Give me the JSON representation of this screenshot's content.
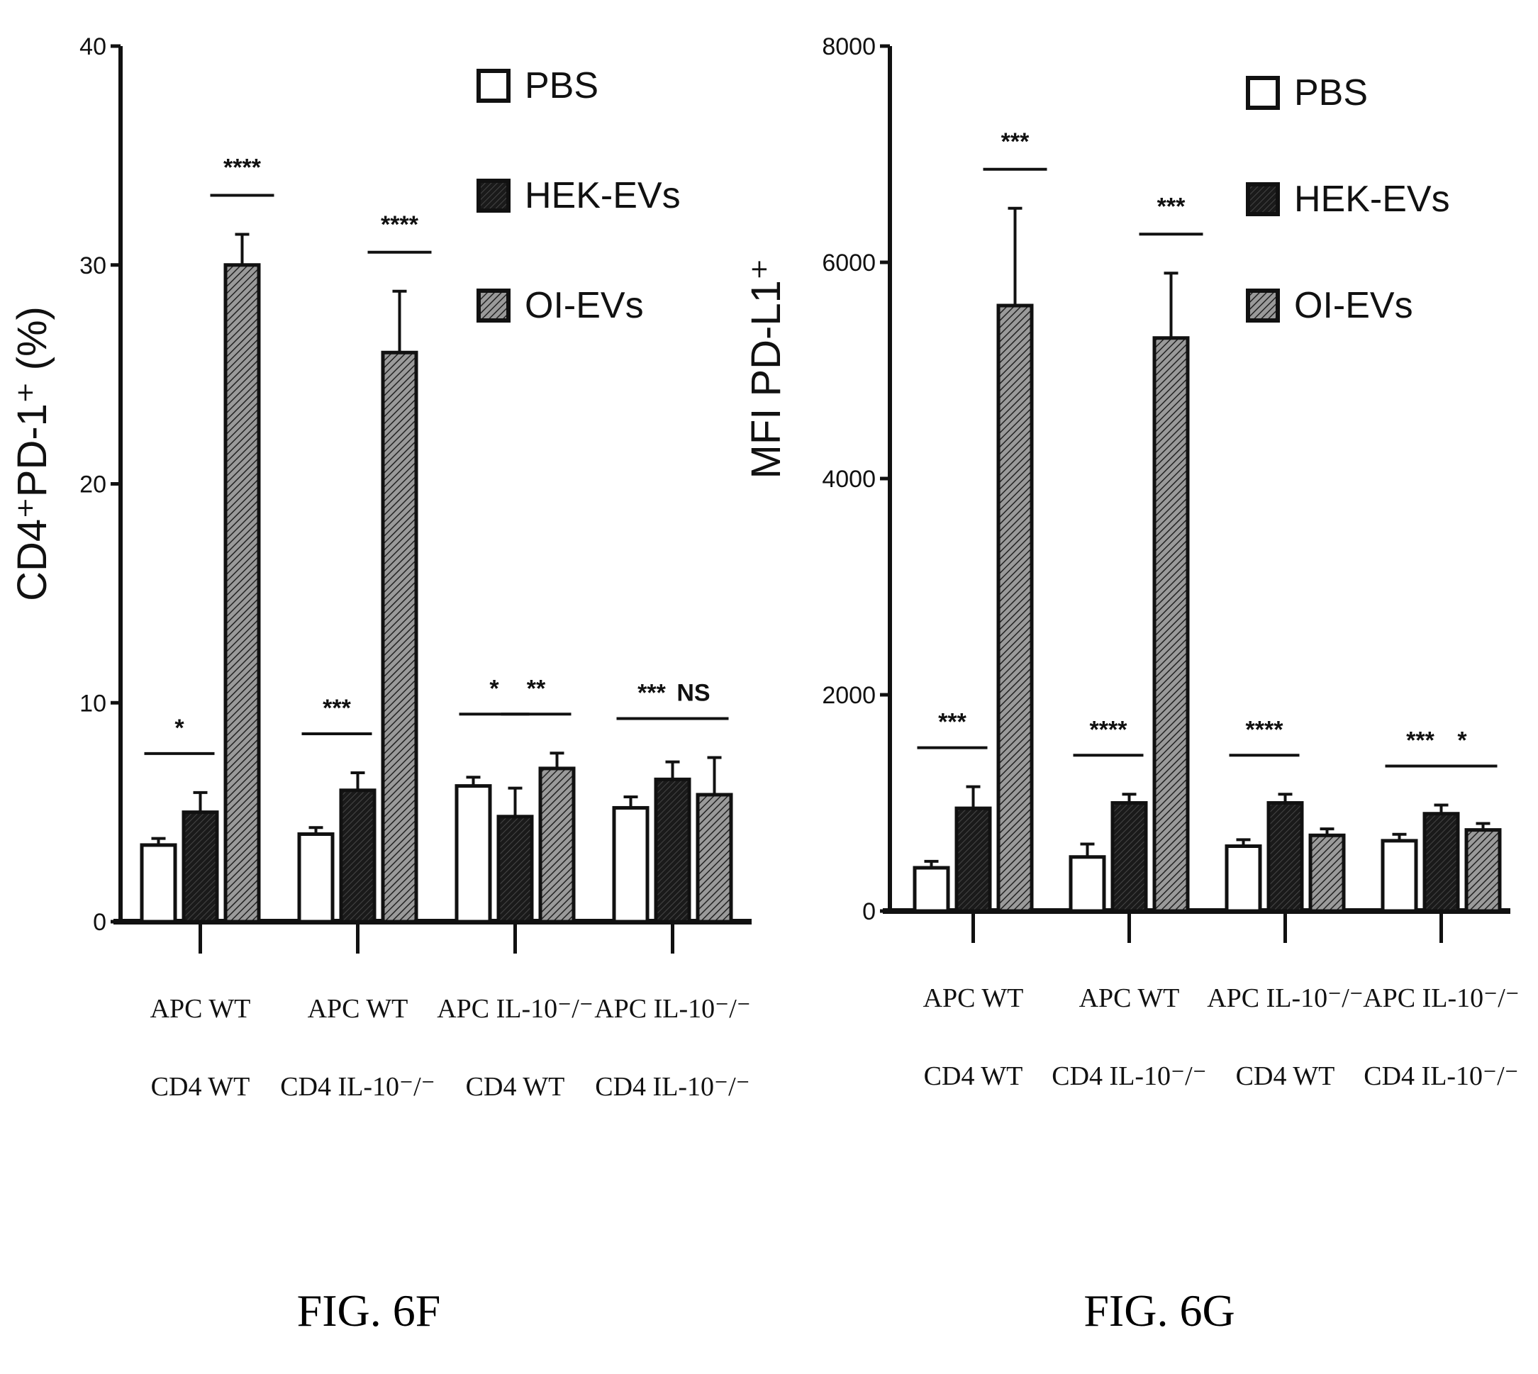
{
  "colors": {
    "PBS": "#ffffff",
    "HEK-EVs": "#111111",
    "OI-EVs": "#555555",
    "axis": "#111111"
  },
  "chart_data": [
    {
      "type": "bar",
      "caption": "FIG. 6F",
      "ylabel": "CD4⁺PD-1⁺ (%)",
      "ylim": [
        0,
        40
      ],
      "yticks": [
        0,
        10,
        20,
        30,
        40
      ],
      "legend_position": "top-right",
      "categories": [
        [
          "APC WT",
          "CD4 WT"
        ],
        [
          "APC WT",
          "CD4 IL-10⁻/⁻"
        ],
        [
          "APC IL-10⁻/⁻",
          "CD4 WT"
        ],
        [
          "APC IL-10⁻/⁻",
          "CD4 IL-10⁻/⁻"
        ]
      ],
      "series": [
        {
          "name": "PBS",
          "values": [
            3.5,
            4.0,
            6.2,
            5.2
          ],
          "errors": [
            0.3,
            0.3,
            0.4,
            0.5
          ]
        },
        {
          "name": "HEK-EVs",
          "values": [
            5.0,
            6.0,
            4.8,
            6.5
          ],
          "errors": [
            0.9,
            0.8,
            1.3,
            0.8
          ]
        },
        {
          "name": "OI-EVs",
          "values": [
            30.0,
            26.0,
            7.0,
            5.8
          ],
          "errors": [
            1.4,
            2.8,
            0.7,
            1.7
          ]
        }
      ],
      "significance": [
        {
          "category": 0,
          "stars": [
            "*"
          ]
        },
        {
          "category": 1,
          "stars": [
            "***"
          ]
        },
        {
          "category": 2,
          "stars": [
            "*",
            "**"
          ]
        },
        {
          "category": 3,
          "stars": [
            "***",
            "NS"
          ]
        }
      ],
      "significance_oi": [
        {
          "category": 0,
          "stars": "****"
        },
        {
          "category": 1,
          "stars": "****"
        }
      ]
    },
    {
      "type": "bar",
      "caption": "FIG. 6G",
      "ylabel": "MFI PD-L1⁺",
      "ylim": [
        0,
        8000
      ],
      "yticks": [
        0,
        2000,
        4000,
        6000,
        8000
      ],
      "legend_position": "top-right",
      "categories": [
        [
          "APC WT",
          "CD4 WT"
        ],
        [
          "APC WT",
          "CD4 IL-10⁻/⁻"
        ],
        [
          "APC IL-10⁻/⁻",
          "CD4 WT"
        ],
        [
          "APC IL-10⁻/⁻",
          "CD4 IL-10⁻/⁻"
        ]
      ],
      "series": [
        {
          "name": "PBS",
          "values": [
            400,
            500,
            600,
            650
          ],
          "errors": [
            60,
            120,
            60,
            60
          ]
        },
        {
          "name": "HEK-EVs",
          "values": [
            950,
            1000,
            1000,
            900
          ],
          "errors": [
            200,
            80,
            80,
            80
          ]
        },
        {
          "name": "OI-EVs",
          "values": [
            5600,
            5300,
            700,
            750
          ],
          "errors": [
            900,
            600,
            60,
            60
          ]
        }
      ],
      "significance": [
        {
          "category": 0,
          "stars": [
            "***"
          ]
        },
        {
          "category": 1,
          "stars": [
            "****"
          ]
        },
        {
          "category": 2,
          "stars": [
            "****"
          ]
        },
        {
          "category": 3,
          "stars": [
            "***",
            "*"
          ]
        }
      ],
      "significance_oi": [
        {
          "category": 0,
          "stars": "***"
        },
        {
          "category": 1,
          "stars": "***"
        }
      ]
    }
  ]
}
